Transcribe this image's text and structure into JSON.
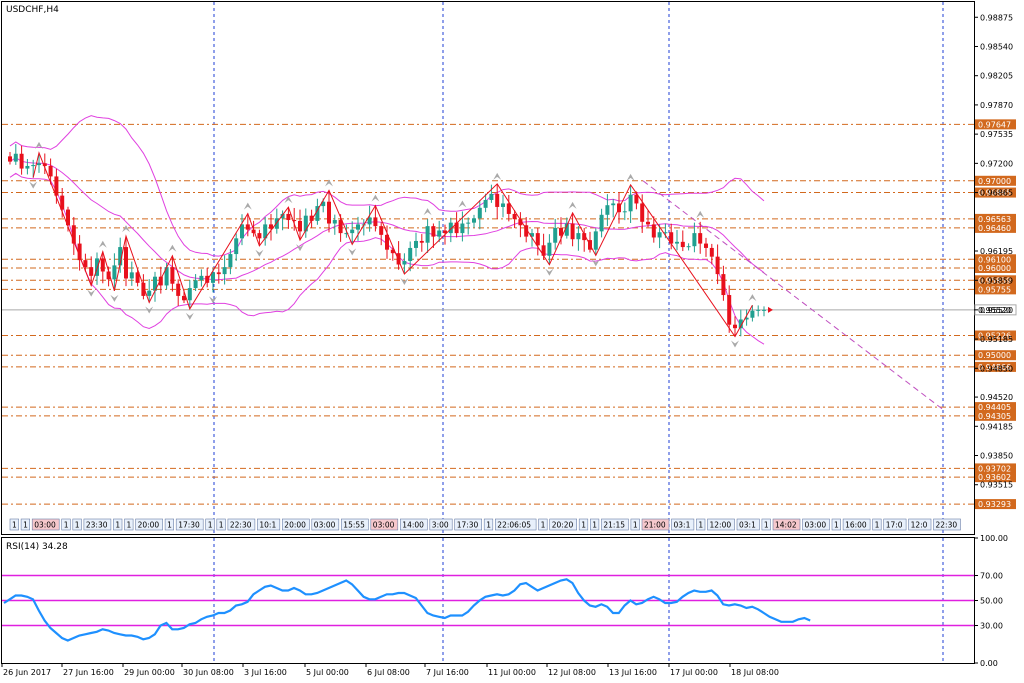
{
  "chart_data": [
    {
      "type": "candlestick",
      "title": "USDCHF,H4",
      "ylim": [
        0.9295,
        0.9905
      ],
      "y_ticks": [
        "0.98875",
        "0.98540",
        "0.98205",
        "0.97870",
        "0.97535",
        "0.97200",
        "0.96865",
        "0.96195",
        "0.95859",
        "0.95520",
        "0.95185",
        "0.94850",
        "0.94520",
        "0.94185",
        "0.93850",
        "0.93515"
      ],
      "x_ticks": [
        "26 Jun 2017",
        "27 Jun 16:00",
        "29 Jun 00:00",
        "30 Jun 08:00",
        "3 Jul 16:00",
        "5 Jul 00:00",
        "6 Jul 08:00",
        "7 Jul 16:00",
        "11 Jul 00:00",
        "12 Jul 08:00",
        "13 Jul 16:00",
        "17 Jul 00:00",
        "18 Jul 08:00"
      ],
      "period_separators_after_tick": [
        "30 Jun 08:00",
        "7 Jul 16:00",
        "13 Jul 16:00"
      ],
      "current_price": "0.95520",
      "levels": [
        {
          "value": "0.97647"
        },
        {
          "value": "0.97000"
        },
        {
          "value": "0.96865"
        },
        {
          "value": "0.96563"
        },
        {
          "value": "0.96460"
        },
        {
          "value": "0.96100"
        },
        {
          "value": "0.96000"
        },
        {
          "value": "0.95859"
        },
        {
          "value": "0.95755"
        },
        {
          "value": "0.95226"
        },
        {
          "value": "0.95000"
        },
        {
          "value": "0.94866"
        },
        {
          "value": "0.94405"
        },
        {
          "value": "0.94305"
        },
        {
          "value": "0.93702"
        },
        {
          "value": "0.93602"
        },
        {
          "value": "0.93293"
        }
      ],
      "session_labels": [
        "1",
        "1",
        "03:00",
        "1",
        "1",
        "23:30",
        "1",
        "1",
        "20:00",
        "1",
        "17:30",
        "1",
        "1",
        "22:30",
        "10:1",
        "20:00",
        "03:00",
        "15:55",
        "03:00",
        "14:00",
        "3:00",
        "17:30",
        "1",
        "22:06:05",
        "1",
        "20:20",
        "1",
        "1",
        "21:15",
        "1",
        "21:00",
        "03:1",
        "1",
        "12:00",
        "03:1",
        "1",
        "14:02",
        "03:00",
        "1",
        "16:00",
        "1",
        "17:0",
        "12:0",
        "22:30"
      ],
      "closes": [
        0.9722,
        0.9731,
        0.9714,
        0.9717,
        0.9718,
        0.972,
        0.9717,
        0.9705,
        0.9683,
        0.9667,
        0.9649,
        0.9628,
        0.9609,
        0.9601,
        0.9591,
        0.9611,
        0.9596,
        0.9587,
        0.9603,
        0.9624,
        0.9588,
        0.9595,
        0.9583,
        0.9568,
        0.9574,
        0.959,
        0.958,
        0.9601,
        0.9582,
        0.9568,
        0.9563,
        0.9577,
        0.9586,
        0.9591,
        0.9583,
        0.9595,
        0.9593,
        0.9601,
        0.9616,
        0.9634,
        0.965,
        0.9644,
        0.964,
        0.9634,
        0.965,
        0.9645,
        0.9657,
        0.9662,
        0.9655,
        0.9654,
        0.9642,
        0.966,
        0.9654,
        0.9671,
        0.9676,
        0.9651,
        0.9655,
        0.964,
        0.964,
        0.9644,
        0.965,
        0.965,
        0.9658,
        0.9648,
        0.9638,
        0.9621,
        0.9617,
        0.9604,
        0.9608,
        0.9623,
        0.9631,
        0.9629,
        0.9648,
        0.9636,
        0.9643,
        0.964,
        0.9652,
        0.964,
        0.9651,
        0.9652,
        0.9657,
        0.9669,
        0.9678,
        0.9685,
        0.967,
        0.9674,
        0.9662,
        0.9656,
        0.9649,
        0.9636,
        0.964,
        0.9626,
        0.9614,
        0.9629,
        0.9646,
        0.9637,
        0.9651,
        0.9633,
        0.964,
        0.9632,
        0.9621,
        0.9642,
        0.9661,
        0.9672,
        0.9674,
        0.9664,
        0.9665,
        0.9684,
        0.9674,
        0.9653,
        0.965,
        0.9635,
        0.9641,
        0.9641,
        0.9628,
        0.963,
        0.9624,
        0.9625,
        0.964,
        0.9628,
        0.9623,
        0.9613,
        0.9593,
        0.9569,
        0.9535,
        0.9531,
        0.9541,
        0.9543,
        0.9551,
        0.9552,
        0.9552
      ],
      "bollinger_bands": true,
      "zigzag": true,
      "fractals": true,
      "trendline": {
        "from_x": "13 Jul 16:00",
        "direction": "down"
      }
    },
    {
      "type": "line",
      "title": "RSI(14) 34.28",
      "ylim": [
        0,
        100
      ],
      "y_ticks": [
        "100.00",
        "70.00",
        "50.00",
        "30.00",
        "0.00"
      ],
      "levels": [
        70,
        50,
        30
      ],
      "series": [
        {
          "values": [
            48,
            51,
            54,
            54,
            53,
            51,
            42,
            34,
            28,
            24,
            20,
            18,
            20,
            22,
            23,
            24,
            25,
            27,
            26,
            24,
            23,
            22,
            22,
            21,
            19,
            20,
            23,
            30,
            32,
            27,
            27,
            28,
            31,
            32,
            35,
            37,
            38,
            40,
            40,
            42,
            46,
            47,
            49,
            55,
            58,
            61,
            62,
            60,
            58,
            58,
            60,
            58,
            55,
            55,
            56,
            58,
            60,
            62,
            64,
            66,
            63,
            58,
            53,
            51,
            51,
            53,
            55,
            55,
            56,
            56,
            54,
            52,
            46,
            40,
            38,
            37,
            36,
            38,
            38,
            38,
            41,
            46,
            50,
            53,
            54,
            55,
            54,
            55,
            58,
            63,
            64,
            61,
            58,
            60,
            62,
            64,
            66,
            67,
            64,
            56,
            50,
            46,
            45,
            47,
            45,
            40,
            40,
            46,
            50,
            47,
            48,
            51,
            53,
            51,
            48,
            48,
            49,
            53,
            56,
            58,
            57,
            57,
            58,
            54,
            47,
            46,
            47,
            46,
            44,
            45,
            43,
            40,
            37,
            35,
            33,
            33,
            33,
            35,
            36,
            34
          ]
        }
      ]
    }
  ]
}
